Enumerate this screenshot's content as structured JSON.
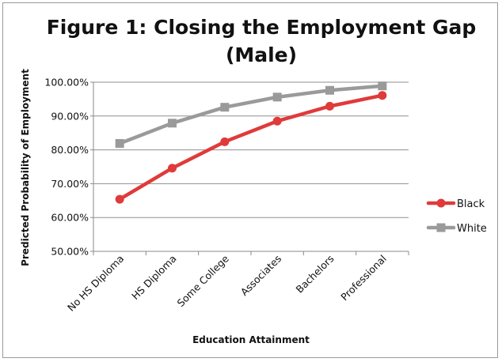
{
  "chart_data": {
    "type": "line",
    "title_line1": "Figure 1: Closing the Employment Gap",
    "title_line2": "(Male)",
    "xlabel": "Education Attainment",
    "ylabel": "Predicted Probability of Employment",
    "categories": [
      "No HS Diploma",
      "HS Diploma",
      "Some College",
      "Associates",
      "Bachelors",
      "Professional"
    ],
    "y_ticks": [
      "50.00%",
      "60.00%",
      "70.00%",
      "80.00%",
      "90.00%",
      "100.00%"
    ],
    "ylim": [
      0.5,
      1.0
    ],
    "grid": true,
    "legend_position": "right",
    "series": [
      {
        "name": "Black",
        "color": "#e03a3a",
        "marker": "circle",
        "values": [
          0.654,
          0.746,
          0.824,
          0.885,
          0.929,
          0.961
        ]
      },
      {
        "name": "White",
        "color": "#9a9a9a",
        "marker": "square",
        "values": [
          0.819,
          0.879,
          0.926,
          0.956,
          0.976,
          0.989
        ]
      }
    ]
  }
}
